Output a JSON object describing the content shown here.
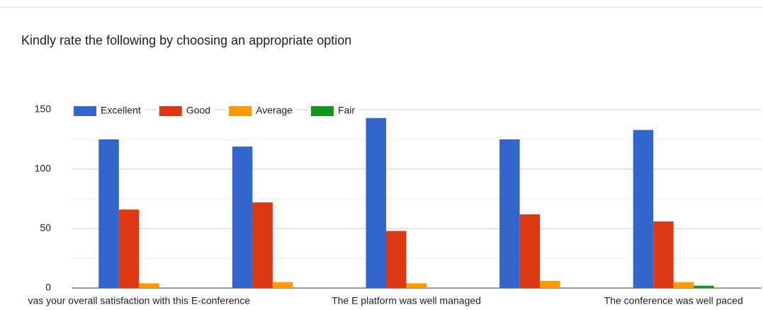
{
  "chart_data": {
    "type": "bar",
    "title": "Kindly rate the following by choosing an appropriate option",
    "categories": [
      "vas your overall satisfaction with this E-conference",
      null,
      "The E platform was well managed",
      null,
      "The conference was well paced"
    ],
    "series": [
      {
        "name": "Excellent",
        "color": "#3366cc",
        "values": [
          125,
          119,
          143,
          125,
          133
        ]
      },
      {
        "name": "Good",
        "color": "#dc3912",
        "values": [
          66,
          72,
          48,
          62,
          56
        ]
      },
      {
        "name": "Average",
        "color": "#ff9900",
        "values": [
          4,
          5,
          4,
          6,
          5
        ]
      },
      {
        "name": "Fair",
        "color": "#109618",
        "values": [
          0,
          0,
          0,
          0,
          2
        ]
      }
    ],
    "ylim": [
      0,
      150
    ],
    "yticks": [
      0,
      50,
      100,
      150
    ],
    "minor_yticks": [
      25,
      75,
      125
    ],
    "grid": true,
    "legend": "top"
  }
}
